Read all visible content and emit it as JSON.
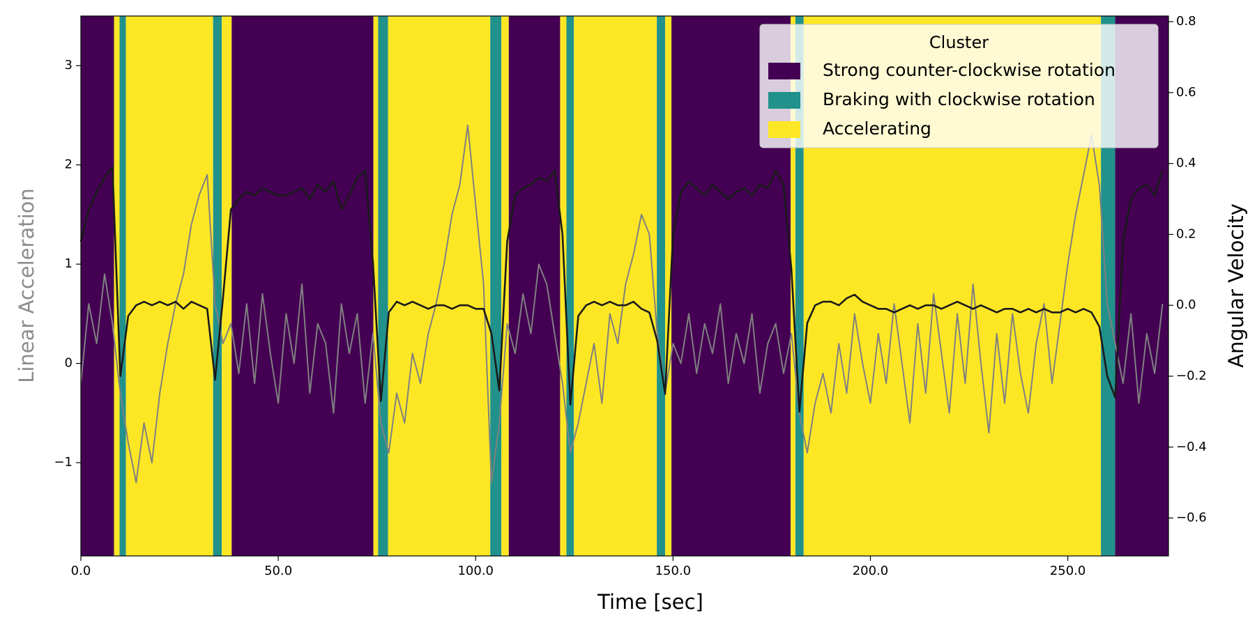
{
  "chart_data": {
    "type": "line",
    "xlabel": "Time [sec]",
    "ylabel": "Linear Acceleration",
    "y2label": "Angular Velocity",
    "xlim": [
      0,
      275.5
    ],
    "xticks": [
      {
        "value": 0,
        "label": "0.0"
      },
      {
        "value": 50,
        "label": "50.0"
      },
      {
        "value": 100,
        "label": "100.0"
      },
      {
        "value": 150,
        "label": "150.0"
      },
      {
        "value": 200,
        "label": "200.0"
      },
      {
        "value": 250,
        "label": "250.0"
      }
    ],
    "ylim": [
      -1.94,
      3.5
    ],
    "yticks": [
      {
        "value": -1,
        "label": "−1"
      },
      0,
      1,
      2,
      3
    ],
    "y2lim": [
      -0.707,
      0.816
    ],
    "y2ticks": [
      {
        "value": -0.6,
        "label": "−0.6"
      },
      {
        "value": -0.4,
        "label": "−0.4"
      },
      {
        "value": -0.2,
        "label": "−0.2"
      },
      {
        "value": 0,
        "label": "0.0"
      },
      0.2,
      0.4,
      0.6,
      0.8
    ],
    "legend": {
      "title": "Cluster",
      "corner": "upper right",
      "entries": [
        {
          "name": "Strong counter-clockwise rotation",
          "color": "#440154"
        },
        {
          "name": "Braking with clockwise rotation",
          "color": "#21918c"
        },
        {
          "name": "Accelerating",
          "color": "#fde725"
        }
      ]
    },
    "spans": [
      {
        "start": 0,
        "end": 8.4,
        "cluster": 0
      },
      {
        "start": 8.4,
        "end": 9.8,
        "cluster": 2
      },
      {
        "start": 9.8,
        "end": 11.4,
        "cluster": 1
      },
      {
        "start": 11.4,
        "end": 33.5,
        "cluster": 2
      },
      {
        "start": 33.5,
        "end": 35.7,
        "cluster": 1
      },
      {
        "start": 35.7,
        "end": 38.2,
        "cluster": 2
      },
      {
        "start": 38.2,
        "end": 74.1,
        "cluster": 0
      },
      {
        "start": 74.1,
        "end": 75.3,
        "cluster": 2
      },
      {
        "start": 75.3,
        "end": 77.8,
        "cluster": 1
      },
      {
        "start": 77.8,
        "end": 103.7,
        "cluster": 2
      },
      {
        "start": 103.7,
        "end": 106.5,
        "cluster": 1
      },
      {
        "start": 106.5,
        "end": 108.4,
        "cluster": 2
      },
      {
        "start": 108.4,
        "end": 121.4,
        "cluster": 0
      },
      {
        "start": 121.4,
        "end": 123.0,
        "cluster": 2
      },
      {
        "start": 123.0,
        "end": 124.9,
        "cluster": 1
      },
      {
        "start": 124.9,
        "end": 145.9,
        "cluster": 2
      },
      {
        "start": 145.9,
        "end": 148.0,
        "cluster": 1
      },
      {
        "start": 148.0,
        "end": 149.6,
        "cluster": 2
      },
      {
        "start": 149.6,
        "end": 179.8,
        "cluster": 0
      },
      {
        "start": 179.8,
        "end": 181.0,
        "cluster": 2
      },
      {
        "start": 181.0,
        "end": 183.1,
        "cluster": 1
      },
      {
        "start": 183.1,
        "end": 258.4,
        "cluster": 2
      },
      {
        "start": 258.4,
        "end": 262.0,
        "cluster": 1
      },
      {
        "start": 262.0,
        "end": 275.5,
        "cluster": 0
      }
    ],
    "x": [
      0,
      2,
      4,
      6,
      8,
      10,
      12,
      14,
      16,
      18,
      20,
      22,
      24,
      26,
      28,
      30,
      32,
      34,
      36,
      38,
      40,
      42,
      44,
      46,
      48,
      50,
      52,
      54,
      56,
      58,
      60,
      62,
      64,
      66,
      68,
      70,
      72,
      74,
      76,
      78,
      80,
      82,
      84,
      86,
      88,
      90,
      92,
      94,
      96,
      98,
      100,
      102,
      104,
      106,
      108,
      110,
      112,
      114,
      116,
      118,
      120,
      122,
      124,
      126,
      128,
      130,
      132,
      134,
      136,
      138,
      140,
      142,
      144,
      146,
      148,
      150,
      152,
      154,
      156,
      158,
      160,
      162,
      164,
      166,
      168,
      170,
      172,
      174,
      176,
      178,
      180,
      182,
      184,
      186,
      188,
      190,
      192,
      194,
      196,
      198,
      200,
      202,
      204,
      206,
      208,
      210,
      212,
      214,
      216,
      218,
      220,
      222,
      224,
      226,
      228,
      230,
      232,
      234,
      236,
      238,
      240,
      242,
      244,
      246,
      248,
      250,
      252,
      254,
      256,
      258,
      260,
      262,
      264,
      266,
      268,
      270,
      272,
      274
    ],
    "series": [
      {
        "color": "#808080",
        "values": [
          -0.2,
          0.6,
          0.2,
          0.9,
          0.4,
          -0.3,
          -0.8,
          -1.2,
          -0.6,
          -1.0,
          -0.3,
          0.2,
          0.6,
          0.9,
          1.4,
          1.7,
          1.9,
          0.6,
          0.2,
          0.4,
          -0.1,
          0.6,
          -0.2,
          0.7,
          0.1,
          -0.4,
          0.5,
          0.0,
          0.8,
          -0.3,
          0.4,
          0.2,
          -0.5,
          0.6,
          0.1,
          0.5,
          -0.4,
          0.3,
          -0.6,
          -0.9,
          -0.3,
          -0.6,
          0.1,
          -0.2,
          0.3,
          0.6,
          1.0,
          1.5,
          1.8,
          2.4,
          1.6,
          0.8,
          -1.2,
          -0.6,
          0.4,
          0.1,
          0.7,
          0.3,
          1.0,
          0.8,
          0.3,
          -0.2,
          -0.9,
          -0.6,
          -0.2,
          0.2,
          -0.4,
          0.5,
          0.2,
          0.8,
          1.1,
          1.5,
          1.3,
          0.3,
          -0.3,
          0.2,
          0.0,
          0.5,
          -0.1,
          0.4,
          0.1,
          0.6,
          -0.2,
          0.3,
          0.0,
          0.5,
          -0.3,
          0.2,
          0.4,
          -0.1,
          0.3,
          -0.5,
          -0.9,
          -0.4,
          -0.1,
          -0.5,
          0.2,
          -0.3,
          0.5,
          0.0,
          -0.4,
          0.3,
          -0.2,
          0.6,
          0.0,
          -0.6,
          0.4,
          -0.3,
          0.7,
          0.1,
          -0.5,
          0.5,
          -0.2,
          0.8,
          0.0,
          -0.7,
          0.3,
          -0.4,
          0.5,
          -0.1,
          -0.5,
          0.2,
          0.6,
          -0.2,
          0.4,
          1.0,
          1.5,
          1.9,
          2.3,
          1.8,
          0.6,
          0.2,
          -0.2,
          0.5,
          -0.4,
          0.3,
          -0.1,
          0.6
        ]
      },
      {
        "color": "#1a1a1a",
        "axis": "y2",
        "values": [
          0.18,
          0.27,
          0.32,
          0.36,
          0.39,
          -0.2,
          -0.03,
          0.0,
          0.01,
          0.0,
          0.01,
          0.0,
          0.01,
          -0.01,
          0.01,
          0.0,
          -0.01,
          -0.21,
          0.02,
          0.27,
          0.3,
          0.32,
          0.31,
          0.33,
          0.32,
          0.31,
          0.31,
          0.32,
          0.33,
          0.3,
          0.34,
          0.32,
          0.35,
          0.27,
          0.31,
          0.36,
          0.38,
          0.12,
          -0.27,
          -0.02,
          0.01,
          0.0,
          0.01,
          0.0,
          -0.01,
          0.0,
          0.0,
          -0.01,
          0.0,
          0.0,
          -0.01,
          -0.01,
          -0.08,
          -0.24,
          0.18,
          0.31,
          0.33,
          0.34,
          0.36,
          0.35,
          0.38,
          0.2,
          -0.28,
          -0.03,
          0.0,
          0.01,
          0.0,
          0.01,
          0.0,
          0.0,
          0.01,
          -0.01,
          -0.02,
          -0.1,
          -0.25,
          0.2,
          0.32,
          0.35,
          0.33,
          0.31,
          0.34,
          0.32,
          0.3,
          0.32,
          0.33,
          0.31,
          0.34,
          0.33,
          0.38,
          0.34,
          0.1,
          -0.3,
          -0.05,
          0.0,
          0.01,
          0.01,
          0.0,
          0.02,
          0.03,
          0.01,
          0.0,
          -0.01,
          -0.01,
          -0.02,
          -0.01,
          0.0,
          -0.01,
          0.0,
          0.0,
          -0.01,
          0.0,
          0.01,
          0.0,
          -0.01,
          0.0,
          -0.01,
          -0.02,
          -0.01,
          -0.01,
          -0.02,
          -0.01,
          -0.02,
          -0.01,
          -0.02,
          -0.02,
          -0.01,
          -0.02,
          -0.01,
          -0.02,
          -0.06,
          -0.2,
          -0.26,
          0.18,
          0.3,
          0.33,
          0.34,
          0.31,
          0.38
        ]
      }
    ]
  }
}
